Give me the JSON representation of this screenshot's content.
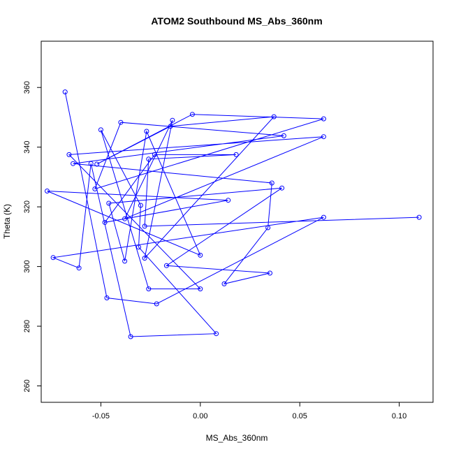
{
  "chart_data": {
    "type": "scatter",
    "title": "ATOM2 Southbound MS_Abs_360nm",
    "xlabel": "MS_Abs_360nm",
    "ylabel": "Theta (K)",
    "xlim": [
      -0.08,
      0.117
    ],
    "ylim": [
      254.5,
      375.5
    ],
    "x_ticks": [
      -0.05,
      0.0,
      0.05,
      0.1
    ],
    "x_tick_labels": [
      "-0.05",
      "0.00",
      "0.05",
      "0.10"
    ],
    "y_ticks": [
      260,
      280,
      300,
      320,
      340,
      360
    ],
    "y_tick_labels": [
      "260",
      "280",
      "300",
      "320",
      "340",
      "360"
    ],
    "grid": false,
    "connected": true,
    "color": "#0000ff",
    "series": [
      {
        "x": [
          -0.068,
          -0.047,
          -0.022,
          0.062,
          -0.074,
          -0.061,
          -0.055,
          -0.035,
          0.008,
          -0.031,
          -0.03,
          -0.05,
          -0.026,
          0.0,
          -0.066,
          0.062,
          -0.038,
          -0.014,
          -0.028,
          0.037,
          -0.015,
          -0.052,
          -0.004,
          0.062,
          -0.053,
          -0.04,
          0.042,
          -0.064,
          0.036,
          0.034,
          0.012,
          0.035,
          -0.017,
          0.041,
          -0.046,
          -0.038,
          -0.027,
          0.0,
          -0.077,
          0.014,
          -0.048,
          -0.023,
          0.018,
          -0.026,
          -0.028,
          0.11
        ],
        "y": [
          358.5,
          289.5,
          287.5,
          316.5,
          303.0,
          299.5,
          334.5,
          276.5,
          277.5,
          306.5,
          320.5,
          345.8,
          292.5,
          292.5,
          337.5,
          343.5,
          316.0,
          349.0,
          302.8,
          350.2,
          347.0,
          334.3,
          351.0,
          349.5,
          326.0,
          348.3,
          343.8,
          334.5,
          328.0,
          313.0,
          294.2,
          297.8,
          300.3,
          326.3,
          321.2,
          301.8,
          345.3,
          303.8,
          325.3,
          322.2,
          314.8,
          337.5,
          337.5,
          336.0,
          313.5,
          316.5
        ]
      }
    ]
  }
}
